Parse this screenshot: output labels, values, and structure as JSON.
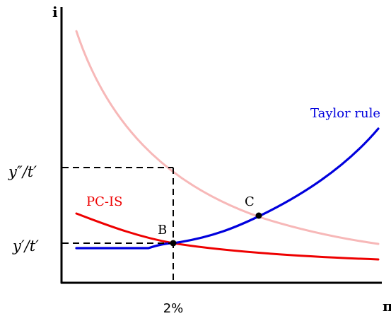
{
  "axes": {
    "y_label": "i",
    "x_label": "π",
    "x_tick_label": "2%",
    "y_tick_low": "y′/t′",
    "y_tick_high": "y″/t′"
  },
  "curves": {
    "taylor_rule": {
      "label": "Taylor rule",
      "color": "#0000dd"
    },
    "pc_is": {
      "label": "PC-IS",
      "color": "#ee0000"
    },
    "pc_is_shifted": {
      "label": "",
      "color": "#f7b8b8"
    }
  },
  "points": {
    "B": {
      "label": "B"
    },
    "C": {
      "label": "C"
    }
  },
  "guide_lines": {
    "color": "#000000",
    "style": "dashed"
  }
}
